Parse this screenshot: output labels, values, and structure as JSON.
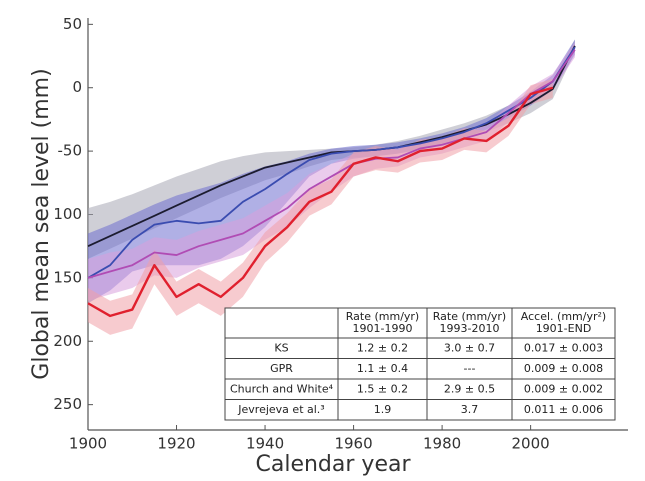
{
  "chart_data": {
    "type": "line",
    "x_label": "Calendar year",
    "y_label": "Global mean sea level (mm)",
    "xlim": [
      1900,
      2022
    ],
    "ylim": [
      -270,
      55
    ],
    "xticks": [
      1900,
      1920,
      1940,
      1960,
      1980,
      2000
    ],
    "yticks": [
      50,
      0,
      -50,
      {
        "value": -100,
        "label": "100"
      },
      {
        "value": -150,
        "label": "150"
      },
      {
        "value": -200,
        "label": "200"
      },
      {
        "value": -250,
        "label": "250"
      }
    ],
    "x": [
      1900,
      1905,
      1910,
      1915,
      1920,
      1925,
      1930,
      1935,
      1940,
      1945,
      1950,
      1955,
      1960,
      1965,
      1970,
      1975,
      1980,
      1985,
      1990,
      1995,
      2000,
      2005,
      2010
    ],
    "series": [
      {
        "color": "#1c1c30",
        "band_color": "#a8a8b4",
        "values": [
          -125,
          -117,
          -109,
          -101,
          -93,
          -85,
          -77,
          -70,
          -63,
          -59,
          -55,
          -51,
          -50,
          -49,
          -47,
          -43,
          -39,
          -34,
          -29,
          -21,
          -12,
          -1,
          33
        ],
        "upper": [
          -95,
          -90,
          -84,
          -77,
          -70,
          -64,
          -58,
          -54,
          -51,
          -50,
          -49,
          -48,
          -47,
          -45,
          -42,
          -38,
          -33,
          -28,
          -22,
          -14,
          -4,
          6,
          38
        ],
        "lower": [
          -135,
          -127,
          -119,
          -111,
          -103,
          -95,
          -87,
          -80,
          -73,
          -68,
          -62,
          -57,
          -55,
          -54,
          -52,
          -48,
          -44,
          -39,
          -35,
          -28,
          -20,
          -9,
          28
        ]
      },
      {
        "color": "#3a4cb0",
        "band_color": "#6f70d0",
        "values": [
          -150,
          -140,
          -120,
          -108,
          -105,
          -107,
          -105,
          -90,
          -80,
          -68,
          -57,
          -52,
          -50,
          -49,
          -47,
          -44,
          -40,
          -35,
          -28,
          -18,
          -8,
          5,
          32
        ],
        "upper": [
          -115,
          -108,
          -100,
          -92,
          -85,
          -80,
          -75,
          -68,
          -62,
          -58,
          -52,
          -48,
          -46,
          -45,
          -43,
          -40,
          -36,
          -31,
          -24,
          -14,
          -3,
          10,
          38
        ],
        "lower": [
          -170,
          -160,
          -145,
          -140,
          -140,
          -140,
          -135,
          -125,
          -110,
          -90,
          -70,
          -60,
          -56,
          -54,
          -52,
          -49,
          -45,
          -40,
          -33,
          -24,
          -14,
          -2,
          26
        ]
      },
      {
        "color": "#b04cb4",
        "band_color": "#d8a0dc",
        "values": [
          -150,
          -145,
          -140,
          -130,
          -132,
          -125,
          -120,
          -115,
          -105,
          -95,
          -80,
          -70,
          -60,
          -56,
          -55,
          -48,
          -45,
          -40,
          -35,
          -20,
          -5,
          5,
          30
        ],
        "upper": [
          -135,
          -130,
          -127,
          -118,
          -120,
          -113,
          -108,
          -103,
          -93,
          -83,
          -68,
          -60,
          -52,
          -49,
          -48,
          -42,
          -39,
          -34,
          -29,
          -14,
          1,
          11,
          36
        ],
        "lower": [
          -168,
          -163,
          -158,
          -148,
          -150,
          -142,
          -137,
          -132,
          -120,
          -110,
          -95,
          -82,
          -70,
          -64,
          -62,
          -55,
          -52,
          -47,
          -42,
          -27,
          -12,
          -2,
          24
        ]
      },
      {
        "color": "#e0202e",
        "band_color": "#f0a0a8",
        "values": [
          -170,
          -180,
          -175,
          -140,
          -165,
          -155,
          -165,
          -150,
          -125,
          -110,
          -90,
          -82,
          -60,
          -55,
          -58,
          -50,
          -48,
          -40,
          -42,
          -30,
          -5,
          0,
          null
        ],
        "upper": [
          -158,
          -168,
          -163,
          -128,
          -153,
          -143,
          -153,
          -138,
          -114,
          -99,
          -80,
          -72,
          -51,
          -46,
          -49,
          -41,
          -39,
          -32,
          -34,
          -23,
          2,
          7,
          null
        ],
        "lower": [
          -185,
          -195,
          -190,
          -155,
          -180,
          -170,
          -180,
          -165,
          -138,
          -122,
          -101,
          -92,
          -70,
          -65,
          -67,
          -59,
          -57,
          -49,
          -51,
          -38,
          -13,
          -8,
          null
        ]
      }
    ],
    "table": {
      "header": [
        [
          "Rate (mm/yr)",
          "1901-1990"
        ],
        [
          "Rate (mm/yr)",
          "1993-2010"
        ],
        [
          "Accel. (mm/yr²)",
          "1901-END"
        ]
      ],
      "rows": [
        [
          "KS",
          "1.2 ± 0.2",
          "3.0 ± 0.7",
          "0.017 ± 0.003"
        ],
        [
          "GPR",
          "1.1 ± 0.4",
          "---",
          "0.009 ± 0.008"
        ],
        [
          "Church and White⁴",
          "1.5 ± 0.2",
          "2.9 ± 0.5",
          "0.009 ± 0.002"
        ],
        [
          "Jevrejeva et al.³",
          "1.9",
          "3.7",
          "0.011 ± 0.006"
        ]
      ]
    }
  }
}
